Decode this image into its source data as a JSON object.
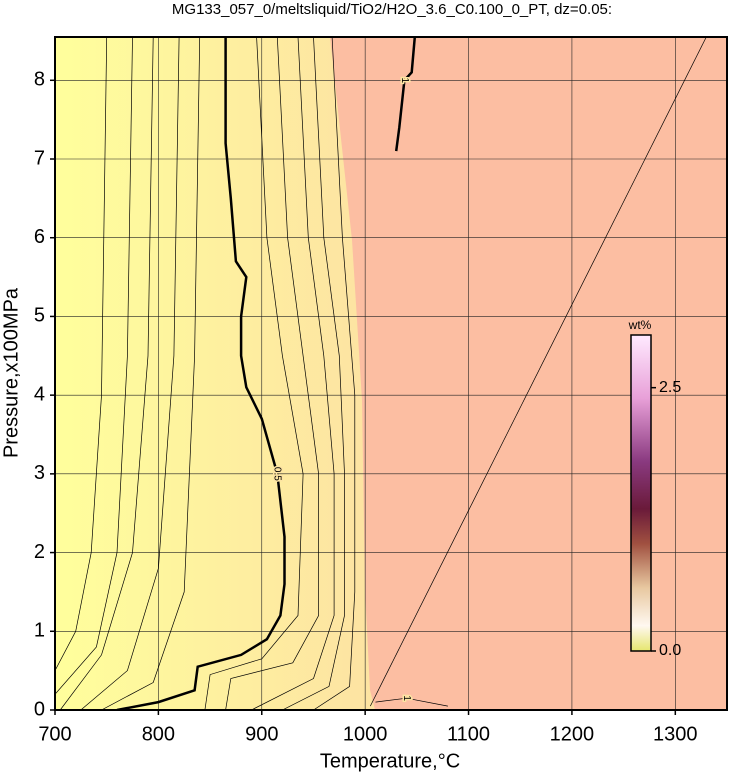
{
  "chart_data": {
    "type": "contour",
    "title": "MG133_057_0/meltsliquid/TiO2/H2O_3.6_C0.100_0_PT, dz=0.05:",
    "x_label": "Temperature,°C",
    "y_label": "Pressure,x100MPa",
    "xlim": [
      700,
      1350
    ],
    "ylim": [
      0,
      8.55
    ],
    "xticks": [
      700,
      800,
      900,
      1000,
      1100,
      1200,
      1300
    ],
    "yticks": [
      0,
      1,
      2,
      3,
      4,
      5,
      6,
      7,
      8
    ],
    "grid": true,
    "contours": [
      {
        "level": 0.25,
        "x": [
          700,
          720,
          735,
          745,
          750
        ],
        "y": [
          0.5,
          1,
          2,
          4,
          8.55
        ]
      },
      {
        "level": 0.3,
        "x": [
          700,
          740,
          760,
          770,
          775
        ],
        "y": [
          0.2,
          0.8,
          2,
          4.5,
          8.55
        ]
      },
      {
        "level": 0.35,
        "x": [
          705,
          745,
          775,
          790,
          795
        ],
        "y": [
          0,
          0.7,
          2,
          4.5,
          8.55
        ]
      },
      {
        "level": 0.4,
        "x": [
          725,
          770,
          800,
          815,
          820
        ],
        "y": [
          0,
          0.5,
          1.8,
          4.5,
          8.55
        ]
      },
      {
        "level": 0.45,
        "x": [
          745,
          795,
          825,
          835,
          840
        ],
        "y": [
          0,
          0.35,
          1.5,
          4.5,
          8.55
        ]
      },
      {
        "level": 0.5,
        "labeled": true,
        "bold": true,
        "x": [
          760,
          800,
          835,
          838,
          880,
          905,
          918,
          922,
          922,
          915,
          900,
          885,
          880,
          880,
          885,
          875,
          870,
          865,
          865
        ],
        "y": [
          0,
          0.1,
          0.25,
          0.55,
          0.7,
          0.9,
          1.2,
          1.6,
          2.2,
          3,
          3.7,
          4.1,
          4.5,
          5.0,
          5.5,
          5.7,
          6.5,
          7.2,
          8.55
        ]
      },
      {
        "level": 0.55,
        "x": [
          845,
          850,
          900,
          935,
          940,
          920,
          905,
          895
        ],
        "y": [
          0,
          0.45,
          0.65,
          1.2,
          3,
          4.5,
          6,
          8.55
        ]
      },
      {
        "level": 0.6,
        "x": [
          865,
          870,
          930,
          955,
          955,
          940,
          925,
          915
        ],
        "y": [
          0,
          0.4,
          0.6,
          1.2,
          3,
          4.5,
          6,
          8.55
        ]
      },
      {
        "level": 0.7,
        "x": [
          890,
          950,
          970,
          970,
          960,
          945,
          935
        ],
        "y": [
          0,
          0.4,
          1.2,
          3,
          4.5,
          6,
          8.55
        ]
      },
      {
        "level": 0.8,
        "x": [
          920,
          965,
          980,
          980,
          975,
          960,
          950
        ],
        "y": [
          0,
          0.3,
          1.2,
          3,
          4.5,
          6,
          8.55
        ]
      },
      {
        "level": 0.9,
        "x": [
          950,
          985,
          990,
          990,
          978,
          968
        ],
        "y": [
          0,
          0.3,
          1.5,
          4,
          6,
          8.55
        ]
      },
      {
        "level": 1,
        "labeled": true,
        "bold": true,
        "x": [
          1048,
          1045,
          1038,
          1033,
          1030
        ],
        "y": [
          8.55,
          8.1,
          8.0,
          7.4,
          7.1
        ]
      },
      {
        "level": 1,
        "labeled": true,
        "x": [
          1010,
          1040,
          1080
        ],
        "y": [
          0.1,
          0.15,
          0.05
        ]
      },
      {
        "level": 1.05,
        "x": [
          1005,
          1330
        ],
        "y": [
          0.05,
          8.55
        ]
      }
    ],
    "colorbar": {
      "label": "wt%",
      "lim": [
        0,
        3.0
      ],
      "ticks": [
        {
          "value": 0,
          "label": "0.0"
        },
        {
          "value": 2.5,
          "label": "2.5"
        }
      ]
    }
  }
}
